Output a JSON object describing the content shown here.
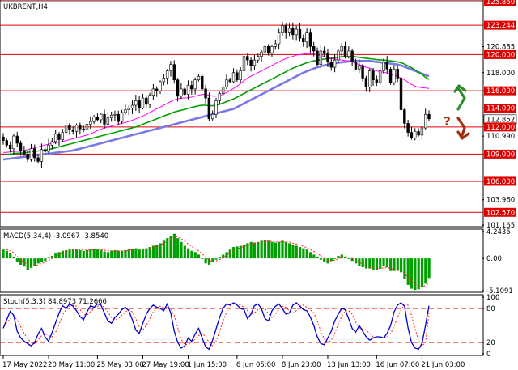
{
  "title": "UKBRENT,H4",
  "colors": {
    "level": "#e00000",
    "ma_fast": "#ff00ff",
    "ma_mid": "#00a000",
    "ma_slow": "#7878e6",
    "macd_hist": "#00a000",
    "macd_signal": "#ff2020",
    "stoch_main": "#0000d0",
    "stoch_signal": "#ff2020",
    "arrow_up": "#2e8b2e",
    "arrow_down": "#a03010",
    "question": "#a03010"
  },
  "chart_data": [
    {
      "type": "candlestick",
      "title": "UKBRENT,H4",
      "ylim": [
        101.165,
        125.85
      ],
      "x_tick_labels": [
        "17 May 2022",
        "20 May 11:00",
        "25 May 03:00",
        "27 May 19:00",
        "1 Jun 15:00",
        "6 Jun 05:00",
        "8 Jun 23:00",
        "13 Jun 13:00",
        "16 Jun 07:00",
        "21 Jun 03:00"
      ],
      "y_tick_labels": [
        "125.850",
        "123.244",
        "120.885",
        "120.000",
        "118.000",
        "116.000",
        "114.090",
        "112.852",
        "112.000",
        "110.990",
        "109.000",
        "106.000",
        "103.960",
        "102.570",
        "101.165"
      ],
      "levels": [
        125.85,
        123.244,
        120.0,
        116.0,
        114.09,
        112.0,
        109.0,
        106.0,
        102.57
      ],
      "current_price": 112.852,
      "close": [
        110.5,
        110.0,
        109.6,
        111.0,
        110.2,
        109.4,
        109.0,
        108.4,
        109.6,
        108.6,
        108.2,
        109.5,
        109.3,
        110.0,
        110.4,
        111.2,
        110.6,
        111.4,
        112.2,
        111.7,
        111.5,
        112.2,
        111.8,
        111.7,
        112.3,
        112.6,
        113.1,
        112.8,
        113.4,
        112.3,
        113.0,
        113.3,
        113.4,
        112.6,
        113.6,
        113.9,
        114.1,
        114.4,
        114.9,
        114.1,
        115.2,
        114.5,
        115.5,
        116.2,
        116.0,
        117.0,
        117.4,
        118.2,
        118.9,
        117.2,
        115.4,
        116.2,
        115.6,
        116.6,
        116.2,
        117.2,
        117.6,
        116.2,
        115.2,
        112.9,
        113.4,
        114.9,
        115.7,
        116.4,
        117.2,
        117.0,
        118.0,
        117.2,
        118.2,
        119.8,
        119.4,
        118.8,
        119.4,
        119.8,
        120.3,
        120.9,
        120.2,
        120.9,
        121.2,
        122.4,
        123.2,
        122.4,
        122.9,
        122.2,
        122.8,
        121.8,
        121.4,
        122.4,
        120.9,
        120.4,
        118.9,
        120.4,
        120.1,
        119.2,
        118.6,
        119.4,
        120.4,
        120.9,
        119.8,
        120.4,
        119.2,
        118.4,
        118.8,
        117.4,
        116.4,
        118.2,
        117.2,
        116.9,
        118.2,
        119.2,
        118.4,
        116.9,
        118.4,
        117.4,
        113.9,
        112.4,
        111.4,
        110.8,
        111.5,
        111.1,
        111.9,
        113.4,
        112.9
      ],
      "ma_fast": [
        109.2,
        109.2,
        109.25,
        109.3,
        109.3,
        109.3,
        109.4,
        109.5,
        109.6,
        109.7,
        109.8,
        109.9,
        110.0,
        110.1,
        110.2,
        110.3,
        110.3,
        110.4,
        110.5,
        110.6,
        110.7,
        110.8,
        110.9,
        111.0,
        111.1,
        111.25,
        111.4,
        111.6,
        111.75,
        111.9,
        112.0,
        112.1,
        112.2,
        112.3,
        112.4,
        112.5,
        112.6,
        112.75,
        112.9,
        113.05,
        113.2,
        113.4,
        113.6,
        113.8,
        114.0,
        114.2,
        114.4,
        114.6,
        114.8,
        115.0,
        115.1,
        115.2,
        115.2,
        115.25,
        115.3,
        115.4,
        115.5,
        115.6,
        115.6,
        115.5,
        115.4,
        115.4,
        115.5,
        115.6,
        115.8,
        116.0,
        116.25,
        116.5,
        116.8,
        117.1,
        117.4,
        117.6,
        117.8,
        118.0,
        118.2,
        118.4,
        118.6,
        118.8,
        119.0,
        119.2,
        119.4,
        119.55,
        119.7,
        119.8,
        119.95,
        120.0,
        120.05,
        120.1,
        120.1,
        120.05,
        119.95,
        119.9,
        119.8,
        119.7,
        119.55,
        119.5,
        119.45,
        119.4,
        119.35,
        119.3,
        119.2,
        119.05,
        118.9,
        118.75,
        118.6,
        118.5,
        118.35,
        118.2,
        118.1,
        118.05,
        117.95,
        117.8,
        117.7,
        117.6,
        117.4,
        117.2,
        116.95,
        116.7,
        116.5,
        116.4,
        116.35,
        116.3,
        116.25
      ],
      "ma_mid": [
        108.9,
        108.95,
        109.0,
        109.05,
        109.1,
        109.1,
        109.15,
        109.2,
        109.25,
        109.3,
        109.35,
        109.4,
        109.45,
        109.5,
        109.6,
        109.7,
        109.8,
        109.9,
        110.0,
        110.1,
        110.2,
        110.3,
        110.4,
        110.5,
        110.6,
        110.7,
        110.8,
        110.9,
        111.0,
        111.1,
        111.2,
        111.3,
        111.4,
        111.5,
        111.6,
        111.7,
        111.8,
        111.9,
        112.0,
        112.15,
        112.3,
        112.45,
        112.6,
        112.75,
        112.9,
        113.05,
        113.2,
        113.35,
        113.5,
        113.65,
        113.75,
        113.85,
        113.95,
        114.05,
        114.15,
        114.25,
        114.35,
        114.4,
        114.4,
        114.35,
        114.35,
        114.4,
        114.5,
        114.65,
        114.8,
        114.95,
        115.1,
        115.3,
        115.5,
        115.7,
        115.9,
        116.1,
        116.3,
        116.5,
        116.7,
        116.9,
        117.1,
        117.3,
        117.5,
        117.7,
        117.9,
        118.1,
        118.3,
        118.5,
        118.65,
        118.8,
        118.95,
        119.1,
        119.2,
        119.3,
        119.35,
        119.45,
        119.5,
        119.55,
        119.6,
        119.65,
        119.7,
        119.75,
        119.8,
        119.8,
        119.8,
        119.75,
        119.7,
        119.65,
        119.6,
        119.55,
        119.5,
        119.45,
        119.4,
        119.4,
        119.35,
        119.3,
        119.25,
        119.2,
        119.1,
        118.95,
        118.75,
        118.55,
        118.3,
        118.05,
        117.8,
        117.5,
        117.25
      ],
      "ma_slow": [
        108.4,
        108.45,
        108.5,
        108.55,
        108.6,
        108.65,
        108.7,
        108.75,
        108.8,
        108.85,
        108.9,
        108.95,
        109.0,
        109.05,
        109.1,
        109.15,
        109.2,
        109.25,
        109.3,
        109.35,
        109.4,
        109.5,
        109.6,
        109.7,
        109.8,
        109.9,
        110.0,
        110.1,
        110.2,
        110.3,
        110.4,
        110.5,
        110.6,
        110.7,
        110.8,
        110.9,
        111.0,
        111.1,
        111.2,
        111.3,
        111.4,
        111.5,
        111.6,
        111.7,
        111.8,
        111.9,
        112.0,
        112.1,
        112.2,
        112.3,
        112.4,
        112.5,
        112.6,
        112.7,
        112.8,
        112.9,
        113.0,
        113.1,
        113.2,
        113.3,
        113.4,
        113.5,
        113.6,
        113.7,
        113.8,
        113.9,
        114.0,
        114.2,
        114.4,
        114.6,
        114.8,
        115.0,
        115.2,
        115.4,
        115.6,
        115.8,
        116.0,
        116.2,
        116.4,
        116.6,
        116.8,
        117.0,
        117.2,
        117.4,
        117.6,
        117.8,
        118.0,
        118.15,
        118.3,
        118.45,
        118.6,
        118.7,
        118.8,
        118.9,
        119.0,
        119.05,
        119.1,
        119.15,
        119.2,
        119.25,
        119.3,
        119.3,
        119.3,
        119.3,
        119.3,
        119.3,
        119.25,
        119.2,
        119.15,
        119.1,
        119.05,
        119.0,
        118.95,
        118.9,
        118.8,
        118.65,
        118.5,
        118.35,
        118.2,
        118.05,
        117.9,
        117.75,
        117.6
      ]
    },
    {
      "type": "bar",
      "title": "MACD(5,34,4) -3.0967 -3.8540",
      "ylim": [
        -5.1091,
        4.2435
      ],
      "y_tick_labels": [
        "4.2435",
        "0.00",
        "-5.1091"
      ],
      "values": [
        1.4,
        1.2,
        0.8,
        0.2,
        -0.6,
        -1.0,
        -1.3,
        -1.8,
        -1.5,
        -1.2,
        -0.8,
        -0.6,
        -0.4,
        0.1,
        0.4,
        0.8,
        1.0,
        1.2,
        1.3,
        1.4,
        1.5,
        1.4,
        1.3,
        1.2,
        1.3,
        1.4,
        1.5,
        1.4,
        1.3,
        1.1,
        1.0,
        1.2,
        1.3,
        1.2,
        1.2,
        1.3,
        1.4,
        1.5,
        1.6,
        1.4,
        1.5,
        1.6,
        1.8,
        2.0,
        2.2,
        2.4,
        2.8,
        3.2,
        3.6,
        3.9,
        3.2,
        2.6,
        2.0,
        1.6,
        1.2,
        1.0,
        0.6,
        0.0,
        -0.8,
        -1.0,
        -0.6,
        -0.2,
        0.2,
        0.6,
        1.0,
        1.4,
        1.8,
        1.9,
        2.0,
        2.2,
        2.4,
        2.6,
        2.5,
        2.6,
        2.8,
        2.9,
        2.8,
        2.6,
        2.5,
        2.6,
        2.8,
        2.6,
        2.4,
        2.2,
        2.0,
        1.8,
        1.6,
        1.4,
        1.0,
        0.6,
        0.2,
        -0.2,
        -0.6,
        -0.8,
        -0.4,
        0.0,
        0.4,
        0.6,
        0.2,
        0.0,
        -0.4,
        -0.8,
        -1.2,
        -1.4,
        -1.6,
        -1.6,
        -1.8,
        -1.8,
        -1.6,
        -1.2,
        -1.4,
        -2.0,
        -2.0,
        -1.8,
        -2.2,
        -3.2,
        -4.2,
        -4.8,
        -5.0,
        -4.9,
        -4.6,
        -4.0,
        -3.1
      ],
      "signal": [
        1.5,
        1.4,
        1.2,
        0.9,
        0.3,
        -0.2,
        -0.6,
        -1.0,
        -1.2,
        -1.2,
        -1.0,
        -0.8,
        -0.6,
        -0.3,
        0.0,
        0.3,
        0.6,
        0.8,
        1.0,
        1.2,
        1.3,
        1.4,
        1.4,
        1.3,
        1.3,
        1.3,
        1.4,
        1.4,
        1.4,
        1.3,
        1.2,
        1.2,
        1.2,
        1.2,
        1.2,
        1.2,
        1.3,
        1.4,
        1.5,
        1.5,
        1.5,
        1.5,
        1.6,
        1.8,
        1.9,
        2.1,
        2.4,
        2.7,
        3.0,
        3.4,
        3.4,
        3.1,
        2.7,
        2.3,
        1.9,
        1.5,
        1.2,
        0.7,
        0.2,
        -0.3,
        -0.5,
        -0.4,
        -0.2,
        0.1,
        0.5,
        0.9,
        1.3,
        1.5,
        1.7,
        1.9,
        2.1,
        2.3,
        2.4,
        2.5,
        2.6,
        2.7,
        2.7,
        2.7,
        2.6,
        2.6,
        2.6,
        2.6,
        2.6,
        2.4,
        2.3,
        2.1,
        1.9,
        1.7,
        1.4,
        1.1,
        0.8,
        0.4,
        0.0,
        -0.3,
        -0.4,
        -0.3,
        -0.1,
        0.2,
        0.3,
        0.2,
        0.0,
        -0.3,
        -0.6,
        -0.9,
        -1.2,
        -1.4,
        -1.5,
        -1.6,
        -1.6,
        -1.5,
        -1.4,
        -1.6,
        -1.8,
        -1.9,
        -2.0,
        -2.4,
        -3.0,
        -3.6,
        -4.1,
        -4.4,
        -4.5,
        -4.3,
        -3.9
      ]
    },
    {
      "type": "line",
      "title": "Stoch(5,3,3) 84.8973 71.2666",
      "ylim": [
        0,
        100
      ],
      "y_tick_labels": [
        "100",
        "80",
        "20",
        "0"
      ],
      "levels": [
        80,
        20
      ],
      "series": [
        {
          "name": "main",
          "values": [
            45,
            60,
            75,
            68,
            40,
            28,
            22,
            18,
            14,
            20,
            35,
            45,
            30,
            22,
            38,
            55,
            72,
            85,
            80,
            88,
            84,
            76,
            66,
            60,
            74,
            85,
            82,
            88,
            86,
            72,
            58,
            54,
            64,
            70,
            78,
            82,
            76,
            60,
            42,
            36,
            54,
            70,
            80,
            86,
            82,
            80,
            76,
            88,
            72,
            40,
            20,
            10,
            14,
            28,
            22,
            35,
            45,
            28,
            12,
            8,
            24,
            44,
            64,
            80,
            88,
            86,
            90,
            86,
            80,
            78,
            62,
            70,
            85,
            88,
            80,
            62,
            58,
            76,
            84,
            88,
            80,
            70,
            72,
            86,
            90,
            84,
            78,
            76,
            65,
            50,
            30,
            18,
            16,
            28,
            40,
            58,
            70,
            80,
            78,
            62,
            45,
            38,
            50,
            40,
            30,
            24,
            28,
            30,
            30,
            28,
            36,
            50,
            74,
            86,
            90,
            84,
            46,
            20,
            10,
            8,
            18,
            50,
            84.9
          ]
        },
        {
          "name": "signal",
          "values": [
            50,
            55,
            62,
            66,
            60,
            48,
            36,
            26,
            20,
            18,
            24,
            32,
            36,
            32,
            30,
            38,
            52,
            68,
            78,
            84,
            86,
            84,
            78,
            70,
            68,
            74,
            80,
            84,
            86,
            82,
            74,
            64,
            60,
            62,
            68,
            74,
            78,
            74,
            62,
            48,
            42,
            50,
            62,
            74,
            82,
            84,
            82,
            82,
            80,
            68,
            46,
            26,
            16,
            16,
            20,
            26,
            32,
            36,
            30,
            20,
            14,
            22,
            40,
            58,
            74,
            84,
            88,
            88,
            86,
            82,
            76,
            70,
            72,
            78,
            82,
            80,
            70,
            64,
            70,
            78,
            84,
            82,
            76,
            72,
            76,
            84,
            86,
            82,
            78,
            72,
            58,
            40,
            26,
            20,
            24,
            36,
            52,
            66,
            76,
            76,
            70,
            56,
            46,
            44,
            42,
            36,
            30,
            28,
            28,
            29,
            30,
            36,
            48,
            64,
            78,
            86,
            86,
            68,
            44,
            24,
            14,
            20,
            71.3
          ]
        }
      ]
    }
  ]
}
